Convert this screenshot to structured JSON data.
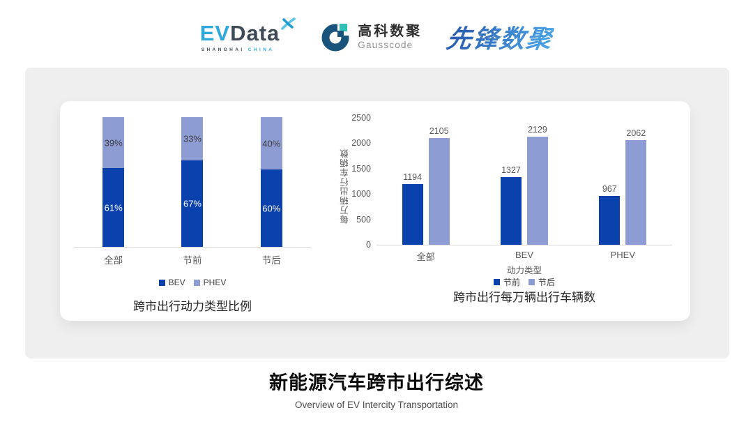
{
  "header": {
    "evdata": {
      "part1": "EV",
      "part2": "Data",
      "tagline_left": "SHANGHAI",
      "tagline_right": "CHINA"
    },
    "gausscode": {
      "name_cn": "高科数聚",
      "name_en": "Gausscode"
    },
    "pioneer": {
      "name": "先锋数聚"
    }
  },
  "footer": {
    "title": "新能源汽车跨市出行综述",
    "subtitle": "Overview of EV Intercity Transportation"
  },
  "colors": {
    "bar_dark_blue": "#0a41ad",
    "bar_light_periwinkle": "#8e9cd4",
    "card_gray": "#efefef",
    "axis_gray": "#d9d9d9",
    "label_gray": "#595959",
    "evdata_cyan": "#2fa8dc",
    "evdata_slate": "#3f4a58",
    "gauss_navy": "#17537a",
    "gauss_teal": "#2ec0b4",
    "pioneer_gradient_start": "#2a5ab0",
    "pioneer_gradient_end": "#4aa3e6"
  },
  "chart_data": [
    {
      "type": "bar",
      "variant": "stacked-100",
      "title": "跨市出行动力类型比例",
      "categories": [
        "全部",
        "节前",
        "节后"
      ],
      "series": [
        {
          "name": "BEV",
          "color": "#0a41ad",
          "values": [
            61,
            67,
            60
          ]
        },
        {
          "name": "PHEV",
          "color": "#8e9cd4",
          "values": [
            39,
            33,
            40
          ]
        }
      ],
      "value_suffix": "%",
      "ylim": [
        0,
        100
      ],
      "grid": false,
      "legend_position": "bottom"
    },
    {
      "type": "bar",
      "variant": "grouped",
      "title": "跨市出行每万辆出行车辆数",
      "categories": [
        "全部",
        "BEV",
        "PHEV"
      ],
      "xlabel": "动力类型",
      "ylabel": "每万辆出行车辆数",
      "yticks": [
        0,
        500,
        1000,
        1500,
        2000,
        2500
      ],
      "ylim": [
        0,
        2500
      ],
      "series": [
        {
          "name": "节前",
          "color": "#0a41ad",
          "values": [
            1194,
            1327,
            967
          ]
        },
        {
          "name": "节后",
          "color": "#8e9cd4",
          "values": [
            2105,
            2129,
            2062
          ]
        }
      ],
      "grid": false,
      "legend_position": "bottom"
    }
  ]
}
